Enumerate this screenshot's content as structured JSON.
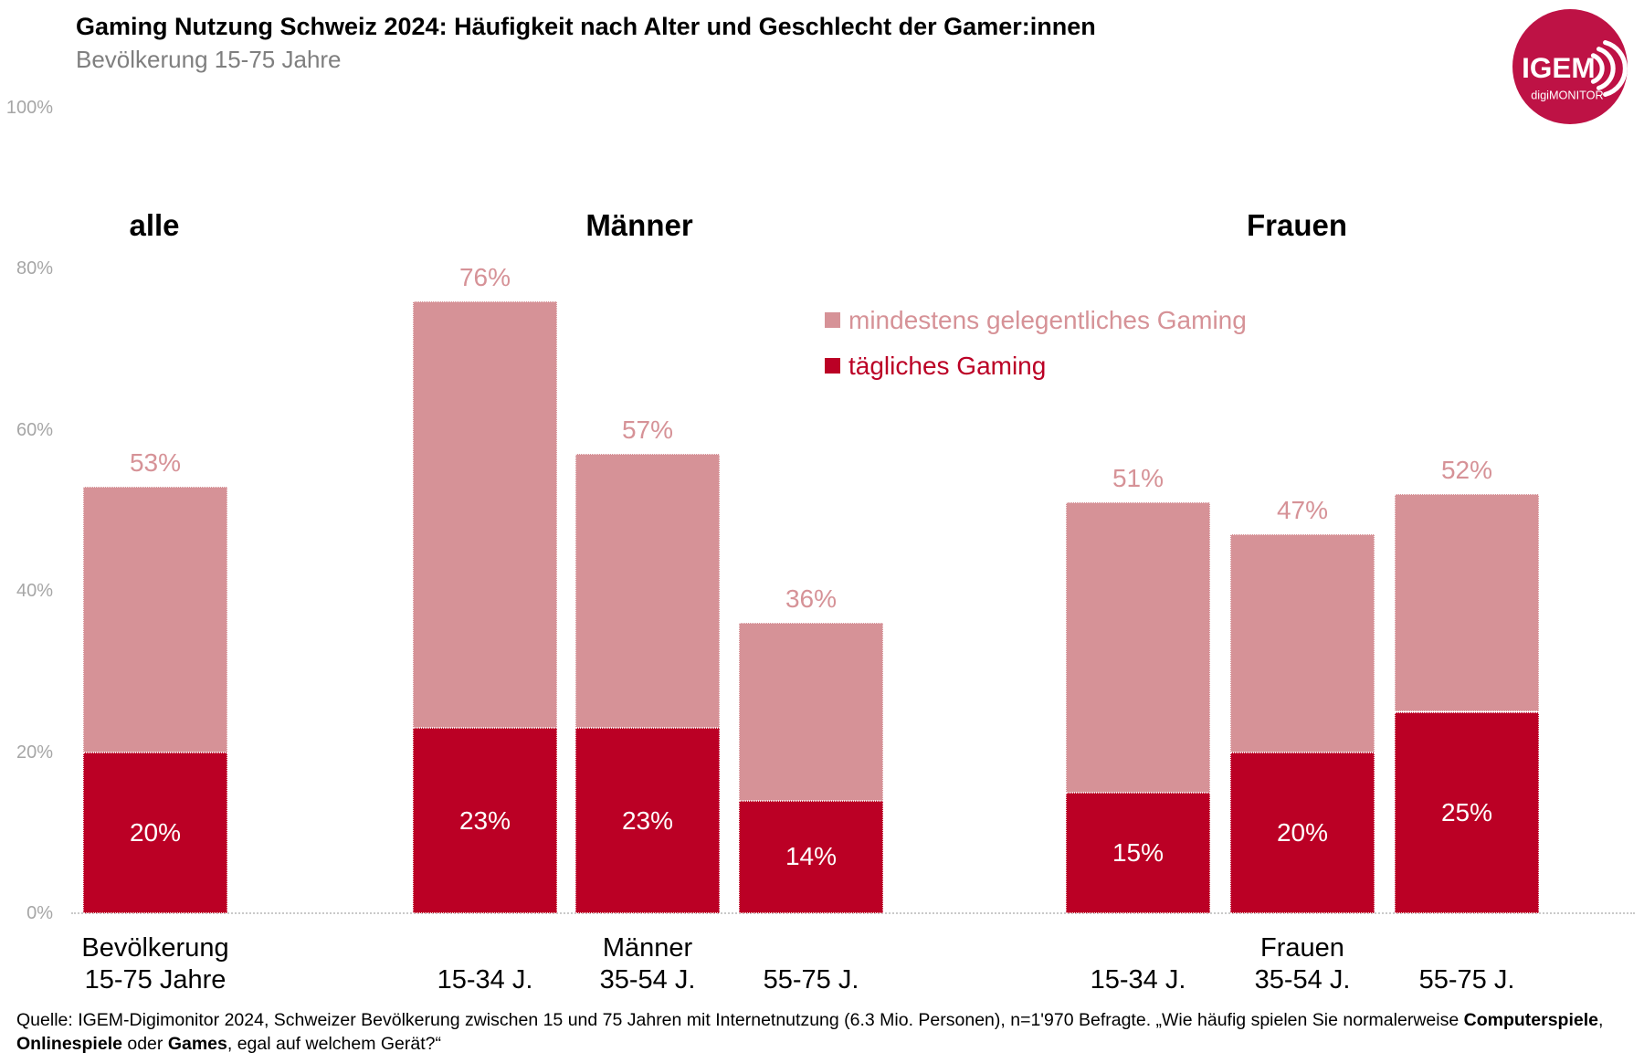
{
  "title": "Gaming Nutzung Schweiz 2024: Häufigkeit nach Alter und Geschlecht der Gamer:innen",
  "subtitle": "Bevölkerung 15-75 Jahre",
  "logo": {
    "line1": "IGEM",
    "line2": "digiMONITOR"
  },
  "colors": {
    "occasional": "#D69297",
    "daily": "#BB0025",
    "logo_circle": "#BE1245",
    "axis_text": "#A6A6A6",
    "subtitle_text": "#7F7F7F",
    "axis_line": "#C9C9C9",
    "label_on_dark": "#FFFFFF"
  },
  "y_axis": {
    "ticks": [
      "100%",
      "80%",
      "60%",
      "40%",
      "20%",
      "0%"
    ]
  },
  "legend": [
    {
      "label": "mindestens gelegentliches Gaming",
      "color_key": "occasional"
    },
    {
      "label": "tägliches Gaming",
      "color_key": "daily"
    }
  ],
  "chart_data": {
    "type": "bar",
    "stacked": true,
    "unit": "percent",
    "ylim": [
      0,
      100
    ],
    "y_ticks": [
      0,
      20,
      40,
      60,
      80,
      100
    ],
    "grid": false,
    "group_headers": [
      "alle",
      "Männer",
      "Frauen"
    ],
    "series": [
      {
        "name": "mindestens gelegentliches Gaming",
        "role": "total",
        "color": "#D69297"
      },
      {
        "name": "tägliches Gaming",
        "role": "daily",
        "color": "#BB0025"
      }
    ],
    "bars": [
      {
        "group": "alle",
        "label_line1": "Bevölkerung",
        "label_line2": "15-75 Jahre",
        "total": 53,
        "daily": 20
      },
      {
        "group": "Männer",
        "label_line1": "",
        "label_line2": "15-34 J.",
        "total": 76,
        "daily": 23
      },
      {
        "group": "Männer",
        "label_line1": "Männer",
        "label_line2": "35-54 J.",
        "total": 57,
        "daily": 23
      },
      {
        "group": "Männer",
        "label_line1": "",
        "label_line2": "55-75 J.",
        "total": 36,
        "daily": 14
      },
      {
        "group": "Frauen",
        "label_line1": "",
        "label_line2": "15-34 J.",
        "total": 51,
        "daily": 15
      },
      {
        "group": "Frauen",
        "label_line1": "Frauen",
        "label_line2": "35-54 J.",
        "total": 47,
        "daily": 20
      },
      {
        "group": "Frauen",
        "label_line1": "",
        "label_line2": "55-75 J.",
        "total": 52,
        "daily": 25
      }
    ]
  },
  "footer": {
    "segments": [
      {
        "text": "Quelle: IGEM-Digimonitor 2024, Schweizer Bevölkerung zwischen 15 und 75 Jahren mit Internetnutzung (6.3 Mio. Personen), n=1'970 Befragte. „Wie häufig spielen Sie normalerweise ",
        "bold": false
      },
      {
        "text": "Computerspiele",
        "bold": true
      },
      {
        "text": ", ",
        "bold": false
      },
      {
        "text": "Onlinespiele",
        "bold": true
      },
      {
        "text": " oder ",
        "bold": false
      },
      {
        "text": "Games",
        "bold": true
      },
      {
        "text": ", egal auf welchem Gerät?“",
        "bold": false
      }
    ]
  }
}
